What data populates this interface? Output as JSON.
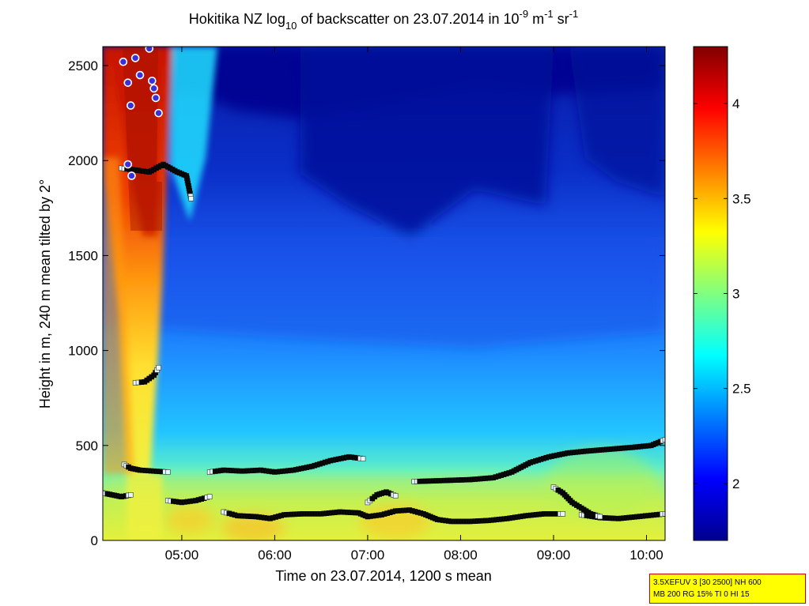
{
  "chart_data": {
    "type": "heatmap",
    "title": {
      "main": "Hokitika NZ log",
      "sub1": "10",
      "mid": " of backscatter on 23.07.2014 in 10",
      "sup1": "-9",
      "mid2": " m",
      "sup2": "-1",
      "mid3": " sr",
      "sup3": "-1"
    },
    "xlabel": "Time on 23.07.2014, 1200 s mean",
    "ylabel": "Height in m, 240 m mean tilted by 2°",
    "x_range_hours": [
      4.15,
      10.2
    ],
    "ylim": [
      0,
      2600
    ],
    "x_ticks": [
      {
        "value": 5,
        "label": "05:00"
      },
      {
        "value": 6,
        "label": "06:00"
      },
      {
        "value": 7,
        "label": "07:00"
      },
      {
        "value": 8,
        "label": "08:00"
      },
      {
        "value": 9,
        "label": "09:00"
      },
      {
        "value": 10,
        "label": "10:00"
      }
    ],
    "y_ticks": [
      {
        "value": 0,
        "label": "0"
      },
      {
        "value": 500,
        "label": "500"
      },
      {
        "value": 1000,
        "label": "1000"
      },
      {
        "value": 1500,
        "label": "1500"
      },
      {
        "value": 2000,
        "label": "2000"
      },
      {
        "value": 2500,
        "label": "2500"
      }
    ],
    "colorbar": {
      "range": [
        1.7,
        4.3
      ],
      "colormap": "jet",
      "ticks": [
        {
          "value": 2,
          "label": "2"
        },
        {
          "value": 2.5,
          "label": "2.5"
        },
        {
          "value": 3,
          "label": "3"
        },
        {
          "value": 3.5,
          "label": "3.5"
        },
        {
          "value": 4,
          "label": "4"
        }
      ]
    },
    "cloud_base_layers": [
      {
        "name": "low",
        "points": [
          [
            5.45,
            150
          ],
          [
            5.6,
            130
          ],
          [
            5.8,
            125
          ],
          [
            5.95,
            115
          ],
          [
            6.1,
            135
          ],
          [
            6.3,
            140
          ],
          [
            6.5,
            140
          ],
          [
            6.7,
            150
          ],
          [
            6.9,
            145
          ],
          [
            7.0,
            125
          ],
          [
            7.15,
            135
          ],
          [
            7.3,
            155
          ],
          [
            7.45,
            160
          ],
          [
            7.6,
            140
          ],
          [
            7.75,
            110
          ],
          [
            7.9,
            100
          ],
          [
            8.1,
            100
          ],
          [
            8.3,
            105
          ],
          [
            8.5,
            115
          ],
          [
            8.7,
            130
          ],
          [
            8.9,
            140
          ],
          [
            9.1,
            140
          ]
        ]
      },
      {
        "name": "low-right",
        "points": [
          [
            9.3,
            135
          ],
          [
            9.5,
            120
          ],
          [
            9.7,
            115
          ],
          [
            9.9,
            125
          ],
          [
            10.2,
            140
          ]
        ]
      },
      {
        "name": "mid",
        "points": [
          [
            5.3,
            360
          ],
          [
            5.45,
            370
          ],
          [
            5.65,
            365
          ],
          [
            5.85,
            370
          ],
          [
            6.0,
            360
          ],
          [
            6.2,
            370
          ],
          [
            6.4,
            390
          ],
          [
            6.6,
            420
          ],
          [
            6.8,
            440
          ],
          [
            6.95,
            430
          ]
        ]
      },
      {
        "name": "mid-right",
        "points": [
          [
            7.5,
            310
          ],
          [
            7.8,
            315
          ],
          [
            8.1,
            320
          ],
          [
            8.35,
            330
          ],
          [
            8.55,
            360
          ],
          [
            8.75,
            410
          ],
          [
            8.95,
            440
          ],
          [
            9.15,
            460
          ],
          [
            9.35,
            470
          ],
          [
            9.6,
            480
          ],
          [
            9.85,
            490
          ],
          [
            10.05,
            500
          ],
          [
            10.2,
            530
          ]
        ]
      },
      {
        "name": "descending",
        "points": [
          [
            9.0,
            280
          ],
          [
            9.1,
            250
          ],
          [
            9.2,
            200
          ],
          [
            9.3,
            170
          ],
          [
            9.4,
            140
          ],
          [
            9.5,
            125
          ]
        ]
      },
      {
        "name": "small-arch",
        "points": [
          [
            7.0,
            200
          ],
          [
            7.1,
            240
          ],
          [
            7.2,
            255
          ],
          [
            7.3,
            235
          ]
        ]
      },
      {
        "name": "left-start",
        "points": [
          [
            4.15,
            250
          ],
          [
            4.25,
            240
          ],
          [
            4.35,
            230
          ],
          [
            4.45,
            240
          ]
        ]
      },
      {
        "name": "left-mid",
        "points": [
          [
            4.38,
            400
          ],
          [
            4.45,
            380
          ],
          [
            4.55,
            370
          ],
          [
            4.7,
            365
          ],
          [
            4.85,
            360
          ]
        ]
      },
      {
        "name": "left-mid2",
        "points": [
          [
            4.85,
            210
          ],
          [
            5.0,
            200
          ],
          [
            5.15,
            210
          ],
          [
            5.3,
            230
          ]
        ]
      },
      {
        "name": "column-830",
        "points": [
          [
            4.5,
            830
          ],
          [
            4.6,
            835
          ],
          [
            4.7,
            870
          ],
          [
            4.75,
            910
          ]
        ]
      },
      {
        "name": "column-1950",
        "points": [
          [
            4.35,
            1960
          ],
          [
            4.5,
            1950
          ],
          [
            4.65,
            1940
          ],
          [
            4.8,
            1980
          ],
          [
            4.95,
            1940
          ],
          [
            5.05,
            1920
          ],
          [
            5.1,
            1800
          ]
        ]
      }
    ],
    "rain_markers": [
      [
        4.37,
        2520
      ],
      [
        4.42,
        2410
      ],
      [
        4.45,
        2290
      ],
      [
        4.5,
        2540
      ],
      [
        4.55,
        2450
      ],
      [
        4.65,
        2590
      ],
      [
        4.68,
        2420
      ],
      [
        4.72,
        2330
      ],
      [
        4.75,
        2250
      ],
      [
        4.42,
        1980
      ],
      [
        4.46,
        1920
      ],
      [
        4.7,
        2380
      ]
    ]
  },
  "info_box": {
    "line1": "3.5XEFUV 3 [30 2500] NH 600",
    "line2": "MB 200 RG 15% TI 0 HI 15"
  }
}
